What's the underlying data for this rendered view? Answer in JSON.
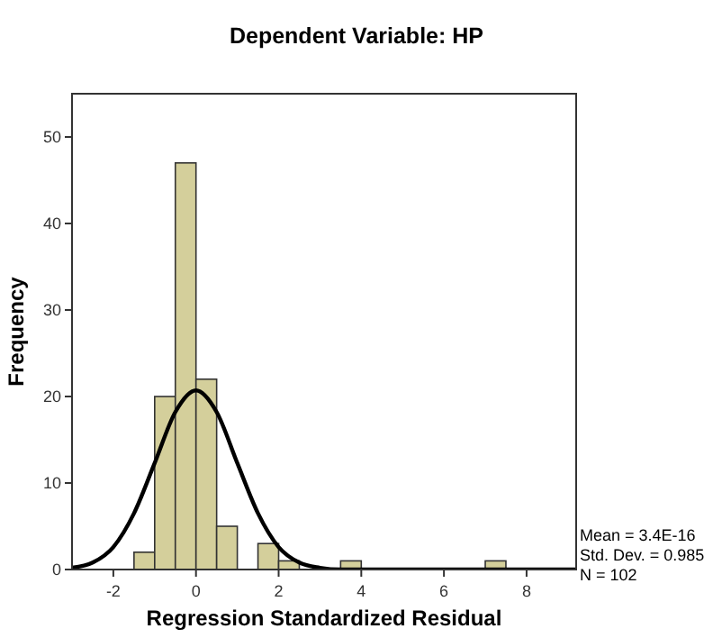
{
  "chart_data": {
    "type": "histogram",
    "title": "Dependent Variable: HP",
    "xlabel": "Regression Standardized Residual",
    "ylabel": "Frequency",
    "xlim": [
      -3,
      9.2
    ],
    "ylim": [
      0,
      55
    ],
    "xticks": [
      -2,
      0,
      2,
      4,
      6,
      8
    ],
    "yticks": [
      0,
      10,
      20,
      30,
      40,
      50
    ],
    "grid": false,
    "series": [
      {
        "color": "#d4cf9b",
        "bins": [
          -1.5,
          -1,
          -0.5,
          0,
          0.5,
          1,
          1.5,
          2,
          2.5,
          3,
          3.5,
          4,
          4.5,
          5,
          5.5,
          6,
          6.5,
          7,
          7.5
        ],
        "values": [
          2,
          20,
          47,
          22,
          5,
          0,
          3,
          1,
          0,
          0,
          1,
          0,
          0,
          0,
          0,
          0,
          0,
          1
        ]
      },
      {
        "type": "line",
        "color": "#000000",
        "x": [
          -3,
          -2.5,
          -2,
          -1.5,
          -1,
          -0.5,
          0,
          0.5,
          1,
          1.5,
          2,
          2.5,
          3,
          3.5,
          4,
          6,
          9.2
        ],
        "values": [
          0.2,
          0.8,
          2.6,
          6.5,
          12.3,
          18.2,
          20.7,
          18.2,
          12.3,
          6.5,
          2.6,
          0.8,
          0.2,
          0,
          0,
          0,
          0
        ]
      }
    ],
    "annotations": [
      "Mean = 3.4E-16",
      "Std. Dev. = 0.985",
      "N = 102"
    ]
  }
}
